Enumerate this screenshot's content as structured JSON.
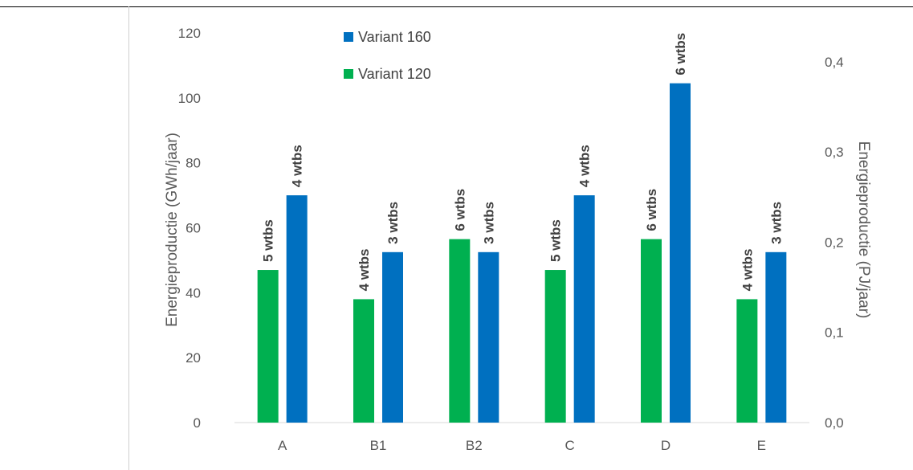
{
  "chart_data": {
    "type": "bar",
    "categories": [
      "A",
      "B1",
      "B2",
      "C",
      "D",
      "E"
    ],
    "series": [
      {
        "name": "Variant 120",
        "color": "#00b050",
        "values": [
          47,
          38,
          56.5,
          47,
          56.5,
          38
        ],
        "labels": [
          "5 wtbs",
          "4 wtbs",
          "6 wtbs",
          "5 wtbs",
          "6 wtbs",
          "4 wtbs"
        ]
      },
      {
        "name": "Variant 160",
        "color": "#0070c0",
        "values": [
          70,
          52.5,
          52.5,
          70,
          104.5,
          52.5
        ],
        "labels": [
          "4 wtbs",
          "3 wtbs",
          "3 wtbs",
          "4 wtbs",
          "6 wtbs",
          "3 wtbs"
        ]
      }
    ],
    "legend_order": [
      "Variant 160",
      "Variant 120"
    ],
    "legend_position": "top-left",
    "ylabel": "Energieproductie (GWh/jaar)",
    "ylim": [
      0,
      120
    ],
    "yticks": [
      "0",
      "20",
      "40",
      "60",
      "80",
      "100",
      "120"
    ],
    "y2label": "Energieproductie (PJ/jaar)",
    "y2lim": [
      0,
      0.432
    ],
    "y2ticks": [
      "0,0",
      "0,1",
      "0,2",
      "0,3",
      "0,4"
    ],
    "grid": false
  }
}
